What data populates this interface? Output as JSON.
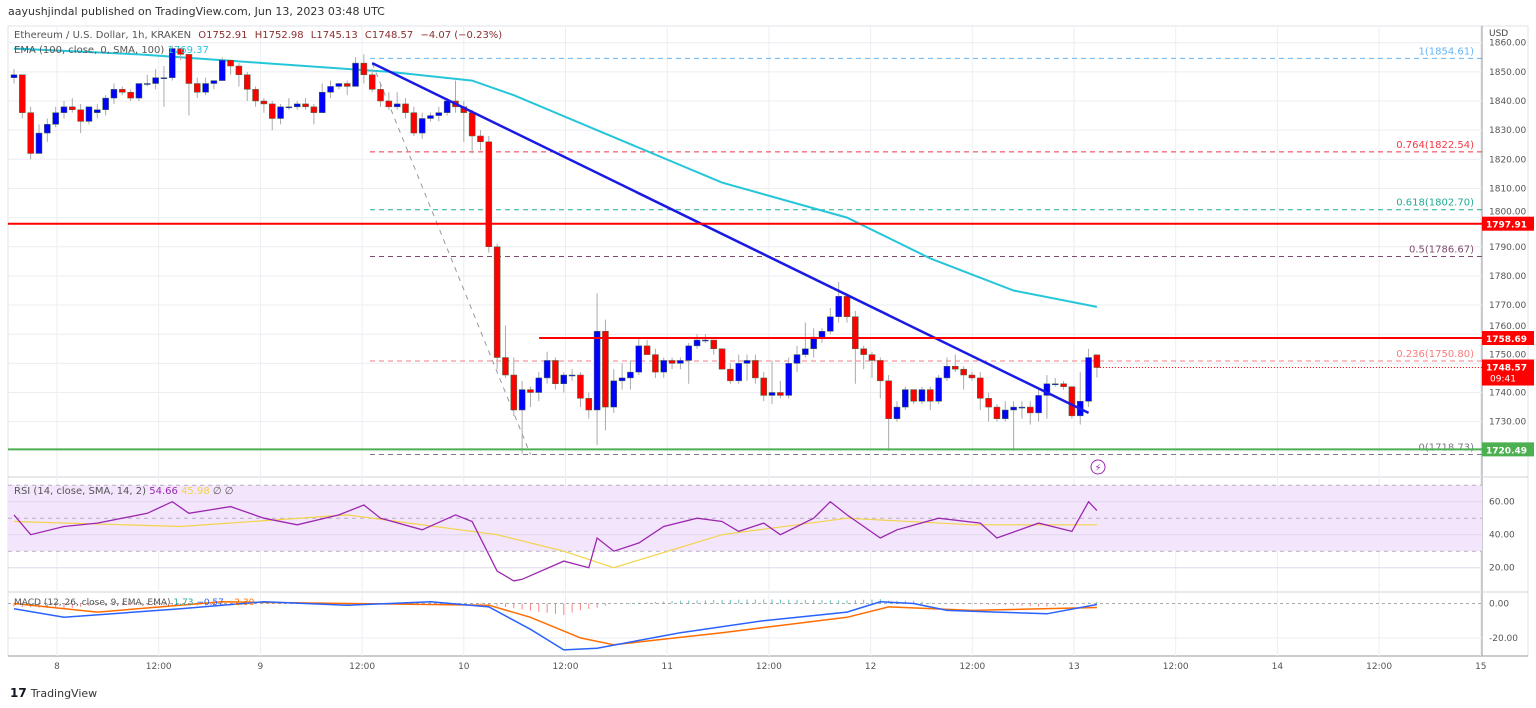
{
  "header": {
    "publish_line": "aayushjindal published on TradingView.com, Jun 13, 2023 03:48 UTC"
  },
  "legend": {
    "symbol": "Ethereum / U.S. Dollar, 1h, KRAKEN",
    "open": "O1752.91",
    "high": "H1752.98",
    "low": "L1745.13",
    "close": "C1748.57",
    "change": "−4.07 (−0.23%)",
    "ema_label": "EMA (100, close, 0, SMA, 100)",
    "ema_value": "1769.37",
    "rsi_label": "RSI (14, close, SMA, 14, 2)",
    "rsi_value": "54.66",
    "rsi_ma_value": "45.98",
    "rsi_extra": "∅ ∅",
    "macd_label": "MACD (12, 26, close, 9, EMA, EMA)",
    "macd_hist": "1.73",
    "macd_value": "−0.57",
    "macd_signal": "−2.30"
  },
  "footer": {
    "brand": "TradingView",
    "logo_icon": "tradingview-logo-icon"
  },
  "colors": {
    "up": "#0000ff",
    "down": "#ff0000",
    "ema": "#26c6da",
    "trendline": "#1a1ae6",
    "resistance": "#ff0000",
    "support": "#4caf50",
    "rsi": "#9c27b0",
    "rsi_ma": "#f3d34a",
    "macd": "#2962ff",
    "signal": "#ff6d00",
    "hist_up": "#26a69a",
    "hist_down": "#ef5350"
  },
  "chart_data": {
    "type": "candlestick",
    "currency_label": "USD",
    "price_ticks": [
      "1860.00",
      "1850.00",
      "1840.00",
      "1830.00",
      "1820.00",
      "1810.00",
      "1800.00",
      "1790.00",
      "1780.00",
      "1770.00",
      "1760.00",
      "1750.00",
      "1740.00",
      "1730.00"
    ],
    "ylim": [
      1716,
      1862
    ],
    "x_ticks": [
      "8",
      "12:00",
      "9",
      "12:00",
      "10",
      "12:00",
      "11",
      "12:00",
      "12",
      "12:00",
      "13",
      "12:00",
      "14",
      "12:00",
      "15"
    ],
    "ohlc": [
      [
        1848,
        1851,
        1846,
        1849
      ],
      [
        1849,
        1849,
        1834,
        1836
      ],
      [
        1836,
        1838,
        1820,
        1822
      ],
      [
        1822,
        1832,
        1822,
        1829
      ],
      [
        1829,
        1834,
        1826,
        1832
      ],
      [
        1832,
        1838,
        1831,
        1836
      ],
      [
        1836,
        1840,
        1834,
        1838
      ],
      [
        1838,
        1841,
        1836,
        1837
      ],
      [
        1837,
        1839,
        1829,
        1833
      ],
      [
        1833,
        1838,
        1832,
        1838
      ],
      [
        1836,
        1839,
        1834,
        1837
      ],
      [
        1837,
        1842,
        1835,
        1841
      ],
      [
        1841,
        1846,
        1839,
        1844
      ],
      [
        1844,
        1845,
        1842,
        1843
      ],
      [
        1843,
        1844,
        1840,
        1841
      ],
      [
        1841,
        1846,
        1840,
        1846
      ],
      [
        1846,
        1849,
        1845,
        1846
      ],
      [
        1846,
        1851,
        1844,
        1848
      ],
      [
        1848,
        1852,
        1838,
        1848
      ],
      [
        1848,
        1859,
        1847,
        1858
      ],
      [
        1858,
        1858,
        1854,
        1856
      ],
      [
        1856,
        1856,
        1835,
        1846
      ],
      [
        1846,
        1848,
        1841,
        1843
      ],
      [
        1843,
        1848,
        1842,
        1846
      ],
      [
        1846,
        1847,
        1844,
        1847
      ],
      [
        1847,
        1855,
        1847,
        1854
      ],
      [
        1854,
        1854,
        1849,
        1852
      ],
      [
        1852,
        1853,
        1845,
        1849
      ],
      [
        1849,
        1850,
        1840,
        1844
      ],
      [
        1844,
        1845,
        1838,
        1840
      ],
      [
        1840,
        1841,
        1836,
        1839
      ],
      [
        1839,
        1840,
        1830,
        1834
      ],
      [
        1834,
        1839,
        1832,
        1838
      ],
      [
        1838,
        1841,
        1837,
        1838
      ],
      [
        1838,
        1840,
        1837,
        1839
      ],
      [
        1839,
        1841,
        1837,
        1838
      ],
      [
        1838,
        1839,
        1832,
        1836
      ],
      [
        1836,
        1846,
        1836,
        1843
      ],
      [
        1843,
        1847,
        1841,
        1845
      ],
      [
        1845,
        1846,
        1844,
        1846
      ],
      [
        1846,
        1847,
        1842,
        1845
      ],
      [
        1845,
        1855,
        1845,
        1853
      ],
      [
        1853,
        1856,
        1846,
        1849
      ],
      [
        1849,
        1851,
        1843,
        1844
      ],
      [
        1844,
        1846,
        1838,
        1840
      ],
      [
        1840,
        1843,
        1837,
        1838
      ],
      [
        1838,
        1843,
        1837,
        1839
      ],
      [
        1839,
        1841,
        1834,
        1836
      ],
      [
        1836,
        1838,
        1828,
        1829
      ],
      [
        1829,
        1836,
        1827,
        1834
      ],
      [
        1834,
        1836,
        1833,
        1835
      ],
      [
        1835,
        1838,
        1833,
        1836
      ],
      [
        1836,
        1841,
        1835,
        1840
      ],
      [
        1840,
        1847,
        1836,
        1838
      ],
      [
        1838,
        1840,
        1826,
        1836
      ],
      [
        1836,
        1837,
        1822,
        1828
      ],
      [
        1828,
        1830,
        1823,
        1826
      ],
      [
        1826,
        1828,
        1788,
        1790
      ],
      [
        1790,
        1791,
        1748,
        1752
      ],
      [
        1752,
        1763,
        1745,
        1746
      ],
      [
        1746,
        1752,
        1732,
        1734
      ],
      [
        1734,
        1744,
        1719,
        1741
      ],
      [
        1741,
        1742,
        1735,
        1740
      ],
      [
        1740,
        1747,
        1737,
        1745
      ],
      [
        1745,
        1754,
        1743,
        1751
      ],
      [
        1751,
        1752,
        1741,
        1743
      ],
      [
        1743,
        1747,
        1740,
        1746
      ],
      [
        1746,
        1748,
        1744,
        1746
      ],
      [
        1746,
        1747,
        1735,
        1738
      ],
      [
        1738,
        1740,
        1731,
        1734
      ],
      [
        1734,
        1774,
        1722,
        1761
      ],
      [
        1761,
        1765,
        1727,
        1735
      ],
      [
        1735,
        1748,
        1733,
        1744
      ],
      [
        1744,
        1750,
        1741,
        1745
      ],
      [
        1745,
        1751,
        1741,
        1747
      ],
      [
        1747,
        1759,
        1746,
        1756
      ],
      [
        1756,
        1758,
        1753,
        1753
      ],
      [
        1753,
        1755,
        1745,
        1747
      ],
      [
        1747,
        1752,
        1745,
        1751
      ],
      [
        1751,
        1752,
        1748,
        1750
      ],
      [
        1750,
        1752,
        1748,
        1751
      ],
      [
        1751,
        1757,
        1743,
        1756
      ],
      [
        1756,
        1760,
        1755,
        1758
      ],
      [
        1758,
        1760,
        1757,
        1758
      ],
      [
        1758,
        1758,
        1753,
        1755
      ],
      [
        1755,
        1755,
        1748,
        1748
      ],
      [
        1748,
        1750,
        1743,
        1744
      ],
      [
        1744,
        1753,
        1743,
        1750
      ],
      [
        1750,
        1753,
        1744,
        1751
      ],
      [
        1751,
        1753,
        1743,
        1745
      ],
      [
        1745,
        1747,
        1737,
        1739
      ],
      [
        1739,
        1751,
        1736,
        1740
      ],
      [
        1740,
        1744,
        1738,
        1739
      ],
      [
        1739,
        1752,
        1738,
        1750
      ],
      [
        1750,
        1756,
        1747,
        1753
      ],
      [
        1753,
        1764,
        1752,
        1755
      ],
      [
        1755,
        1762,
        1752,
        1759
      ],
      [
        1759,
        1762,
        1757,
        1761
      ],
      [
        1761,
        1769,
        1760,
        1766
      ],
      [
        1766,
        1778,
        1764,
        1773
      ],
      [
        1773,
        1774,
        1764,
        1766
      ],
      [
        1766,
        1768,
        1743,
        1755
      ],
      [
        1755,
        1756,
        1748,
        1753
      ],
      [
        1753,
        1754,
        1745,
        1751
      ],
      [
        1751,
        1752,
        1738,
        1744
      ],
      [
        1744,
        1746,
        1720,
        1731
      ],
      [
        1731,
        1737,
        1730,
        1735
      ],
      [
        1735,
        1742,
        1734,
        1741
      ],
      [
        1741,
        1741,
        1736,
        1737
      ],
      [
        1737,
        1742,
        1736,
        1741
      ],
      [
        1741,
        1742,
        1734,
        1737
      ],
      [
        1737,
        1746,
        1736,
        1745
      ],
      [
        1745,
        1752,
        1744,
        1749
      ],
      [
        1749,
        1753,
        1747,
        1748
      ],
      [
        1748,
        1749,
        1741,
        1746
      ],
      [
        1746,
        1747,
        1744,
        1745
      ],
      [
        1745,
        1747,
        1734,
        1738
      ],
      [
        1738,
        1740,
        1730,
        1735
      ],
      [
        1735,
        1736,
        1730,
        1731
      ],
      [
        1731,
        1737,
        1730,
        1734
      ],
      [
        1734,
        1737,
        1720,
        1735
      ],
      [
        1735,
        1737,
        1731,
        1735
      ],
      [
        1735,
        1737,
        1729,
        1733
      ],
      [
        1733,
        1741,
        1730,
        1739
      ],
      [
        1739,
        1746,
        1731,
        1743
      ],
      [
        1743,
        1745,
        1742,
        1743
      ],
      [
        1743,
        1744,
        1741,
        1742
      ],
      [
        1742,
        1742,
        1731,
        1732
      ],
      [
        1732,
        1747,
        1729,
        1737
      ],
      [
        1737,
        1755,
        1735,
        1752
      ],
      [
        1752.91,
        1752.98,
        1745.13,
        1748.57
      ]
    ],
    "ema100": [
      [
        0,
        1858
      ],
      [
        15,
        1856
      ],
      [
        30,
        1853
      ],
      [
        45,
        1850
      ],
      [
        55,
        1847
      ],
      [
        60,
        1842
      ],
      [
        70,
        1830
      ],
      [
        85,
        1812
      ],
      [
        100,
        1800
      ],
      [
        110,
        1786
      ],
      [
        120,
        1775
      ],
      [
        130,
        1769.37
      ]
    ],
    "trendline": [
      [
        43,
        1853
      ],
      [
        129,
        1733
      ]
    ],
    "fib_anchor_line": [
      [
        43,
        1853
      ],
      [
        62,
        1718.73
      ]
    ],
    "fibonacci": [
      {
        "label": "1(1854.61)",
        "value": 1854.61,
        "color": "#64b5f6"
      },
      {
        "label": "0.764(1822.54)",
        "value": 1822.54,
        "color": "#f23645"
      },
      {
        "label": "0.618(1802.70)",
        "value": 1802.7,
        "color": "#22ab94"
      },
      {
        "label": "0.5(1786.67)",
        "value": 1786.67,
        "color": "#7e4a6e"
      },
      {
        "label": "0.236(1750.80)",
        "value": 1750.8,
        "color": "#f77c80"
      },
      {
        "label": "0(1718.73)",
        "value": 1718.73,
        "color": "#787b86"
      }
    ],
    "horizontal_levels": [
      {
        "label": "1797.91",
        "value": 1797.91,
        "color": "#ff0000",
        "start_index": 0
      },
      {
        "label": "1758.69",
        "value": 1758.69,
        "color": "#ff0000",
        "start_index": 64
      },
      {
        "label": "1720.49",
        "value": 1720.49,
        "color": "#4caf50",
        "start_index": 0
      }
    ],
    "last_price": {
      "label": "1748.57",
      "countdown": "09:41",
      "value": 1748.57
    },
    "rsi": {
      "ticks": [
        "60.00",
        "40.00",
        "20.00"
      ],
      "band": [
        30,
        70
      ],
      "mid": 50,
      "values": [
        [
          0,
          52
        ],
        [
          2,
          40
        ],
        [
          6,
          45
        ],
        [
          10,
          47
        ],
        [
          16,
          53
        ],
        [
          19,
          60
        ],
        [
          21,
          53
        ],
        [
          26,
          57
        ],
        [
          30,
          50
        ],
        [
          34,
          46
        ],
        [
          39,
          52
        ],
        [
          42,
          58
        ],
        [
          44,
          50
        ],
        [
          49,
          43
        ],
        [
          53,
          52
        ],
        [
          55,
          48
        ],
        [
          58,
          18
        ],
        [
          60,
          12
        ],
        [
          61,
          13
        ],
        [
          66,
          24
        ],
        [
          69,
          20
        ],
        [
          70,
          38
        ],
        [
          72,
          30
        ],
        [
          75,
          35
        ],
        [
          78,
          45
        ],
        [
          82,
          50
        ],
        [
          85,
          48
        ],
        [
          87,
          42
        ],
        [
          90,
          47
        ],
        [
          92,
          40
        ],
        [
          96,
          50
        ],
        [
          98,
          60
        ],
        [
          100,
          52
        ],
        [
          104,
          38
        ],
        [
          106,
          43
        ],
        [
          111,
          50
        ],
        [
          116,
          47
        ],
        [
          118,
          38
        ],
        [
          123,
          47
        ],
        [
          127,
          42
        ],
        [
          129,
          60
        ],
        [
          130,
          54.66
        ]
      ],
      "ma": [
        [
          0,
          48
        ],
        [
          20,
          45
        ],
        [
          40,
          52
        ],
        [
          58,
          40
        ],
        [
          66,
          30
        ],
        [
          72,
          20
        ],
        [
          85,
          40
        ],
        [
          100,
          50
        ],
        [
          115,
          46
        ],
        [
          130,
          45.98
        ]
      ]
    },
    "macd": {
      "ticks": [
        "0.00",
        "-20.00"
      ],
      "macd": [
        [
          0,
          -3
        ],
        [
          6,
          -8
        ],
        [
          20,
          -3
        ],
        [
          30,
          1
        ],
        [
          40,
          -1
        ],
        [
          50,
          1
        ],
        [
          57,
          -2
        ],
        [
          62,
          -15
        ],
        [
          66,
          -27
        ],
        [
          70,
          -26
        ],
        [
          80,
          -17
        ],
        [
          90,
          -10
        ],
        [
          100,
          -5
        ],
        [
          104,
          1
        ],
        [
          108,
          0
        ],
        [
          112,
          -4
        ],
        [
          118,
          -5
        ],
        [
          124,
          -6
        ],
        [
          130,
          -0.57
        ]
      ],
      "signal": [
        [
          0,
          0
        ],
        [
          10,
          -5
        ],
        [
          25,
          1
        ],
        [
          40,
          0
        ],
        [
          57,
          -1
        ],
        [
          62,
          -8
        ],
        [
          68,
          -20
        ],
        [
          72,
          -24
        ],
        [
          85,
          -17
        ],
        [
          100,
          -8
        ],
        [
          105,
          -2
        ],
        [
          115,
          -4
        ],
        [
          130,
          -2.3
        ]
      ]
    }
  }
}
